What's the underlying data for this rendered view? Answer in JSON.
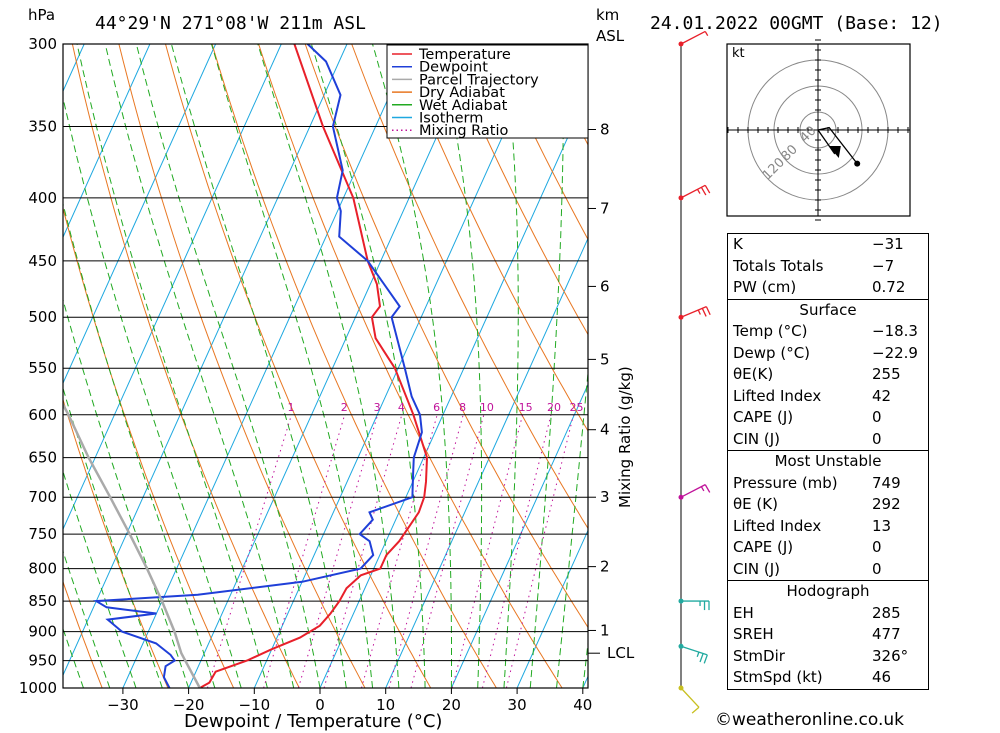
{
  "header": {
    "location": "44°29'N  271°08'W  211m  ASL",
    "datetime": "24.01.2022  00GMT  (Base: 12)",
    "left_unit": "hPa",
    "km_unit": "km",
    "asl_unit": "ASL",
    "kt_label": "kt"
  },
  "legend": [
    {
      "label": "Temperature",
      "color": "#e8202a",
      "style": "solid"
    },
    {
      "label": "Dewpoint",
      "color": "#1f3fd8",
      "style": "solid"
    },
    {
      "label": "Parcel Trajectory",
      "color": "#aaaaaa",
      "style": "solid"
    },
    {
      "label": "Dry Adiabat",
      "color": "#e87722",
      "style": "solid"
    },
    {
      "label": "Wet Adiabat",
      "color": "#22aa22",
      "style": "solid"
    },
    {
      "label": "Isotherm",
      "color": "#1ea8e0",
      "style": "solid"
    },
    {
      "label": "Mixing Ratio",
      "color": "#c0139a",
      "style": "dotted"
    }
  ],
  "chart_data": {
    "type": "line",
    "xlabel": "Dewpoint / Temperature (°C)",
    "ylabel": "hPa",
    "mixing_label": "Mixing Ratio (g/kg)",
    "xlim": [
      -40,
      40
    ],
    "x_ticks": [
      -30,
      -20,
      -10,
      0,
      10,
      20,
      30,
      40
    ],
    "pressure_levels": [
      300,
      350,
      400,
      450,
      500,
      550,
      600,
      650,
      700,
      750,
      800,
      850,
      900,
      950,
      1000
    ],
    "km_ticks": [
      {
        "label": "8",
        "p": 352
      },
      {
        "label": "7",
        "p": 408
      },
      {
        "label": "6",
        "p": 472
      },
      {
        "label": "5",
        "p": 541
      },
      {
        "label": "4",
        "p": 617
      },
      {
        "label": "3",
        "p": 700
      },
      {
        "label": "2",
        "p": 797
      },
      {
        "label": "1",
        "p": 898
      }
    ],
    "lcl": {
      "label": "LCL",
      "p": 937
    },
    "mixing_ratio_labels": [
      "1",
      "2",
      "3",
      "4",
      "6",
      "8",
      "10",
      "15",
      "20",
      "25"
    ],
    "series": [
      {
        "name": "Temperature",
        "color": "#e8202a",
        "points": [
          [
            1000,
            -18.3
          ],
          [
            990,
            -17.2
          ],
          [
            970,
            -17.0
          ],
          [
            950,
            -13.0
          ],
          [
            930,
            -10.0
          ],
          [
            910,
            -6.5
          ],
          [
            890,
            -4.3
          ],
          [
            870,
            -3.5
          ],
          [
            850,
            -3.0
          ],
          [
            830,
            -2.8
          ],
          [
            810,
            -1.5
          ],
          [
            800,
            1.0
          ],
          [
            780,
            1.0
          ],
          [
            760,
            2.0
          ],
          [
            740,
            2.5
          ],
          [
            720,
            3.0
          ],
          [
            700,
            2.8
          ],
          [
            680,
            2.0
          ],
          [
            650,
            0.5
          ],
          [
            600,
            -4.5
          ],
          [
            550,
            -10.5
          ],
          [
            520,
            -15.5
          ],
          [
            500,
            -17.5
          ],
          [
            490,
            -17.0
          ],
          [
            470,
            -19.0
          ],
          [
            450,
            -22.0
          ],
          [
            400,
            -28.5
          ],
          [
            350,
            -38.0
          ],
          [
            300,
            -48.0
          ]
        ]
      },
      {
        "name": "Dewpoint",
        "color": "#1f3fd8",
        "points": [
          [
            1000,
            -22.9
          ],
          [
            980,
            -24.5
          ],
          [
            960,
            -25.0
          ],
          [
            950,
            -24.0
          ],
          [
            940,
            -25.0
          ],
          [
            920,
            -28.0
          ],
          [
            900,
            -34.0
          ],
          [
            880,
            -37.0
          ],
          [
            870,
            -30.0
          ],
          [
            860,
            -38.0
          ],
          [
            850,
            -40.0
          ],
          [
            840,
            -25.0
          ],
          [
            820,
            -10.0
          ],
          [
            800,
            -2.0
          ],
          [
            780,
            -1.0
          ],
          [
            760,
            -2.5
          ],
          [
            750,
            -4.5
          ],
          [
            730,
            -3.5
          ],
          [
            720,
            -4.5
          ],
          [
            700,
            1.0
          ],
          [
            690,
            0.5
          ],
          [
            670,
            -0.5
          ],
          [
            650,
            -1.5
          ],
          [
            620,
            -2.0
          ],
          [
            600,
            -3.5
          ],
          [
            580,
            -6.0
          ],
          [
            550,
            -9.0
          ],
          [
            500,
            -14.5
          ],
          [
            490,
            -14.0
          ],
          [
            450,
            -22.0
          ],
          [
            430,
            -28.0
          ],
          [
            410,
            -29.5
          ],
          [
            400,
            -31.0
          ],
          [
            380,
            -32.0
          ],
          [
            350,
            -36.5
          ],
          [
            330,
            -37.5
          ],
          [
            310,
            -42.0
          ],
          [
            300,
            -46.0
          ]
        ]
      },
      {
        "name": "Parcel Trajectory",
        "color": "#aaaaaa",
        "points": [
          [
            1000,
            -18.3
          ],
          [
            937,
            -23.5
          ],
          [
            900,
            -26.0
          ],
          [
            850,
            -30.0
          ],
          [
            800,
            -34.5
          ],
          [
            750,
            -39.5
          ],
          [
            700,
            -45.0
          ],
          [
            650,
            -51.0
          ],
          [
            600,
            -57.0
          ],
          [
            550,
            -64.0
          ]
        ]
      }
    ]
  },
  "wind_barbs": [
    {
      "p": 300,
      "dir": 300,
      "kt": 5,
      "color": "#e8202a"
    },
    {
      "p": 400,
      "dir": 300,
      "kt": 25,
      "color": "#e8202a"
    },
    {
      "p": 500,
      "dir": 295,
      "kt": 25,
      "color": "#e8202a"
    },
    {
      "p": 700,
      "dir": 300,
      "kt": 15,
      "color": "#c0139a"
    },
    {
      "p": 850,
      "dir": 270,
      "kt": 25,
      "color": "#22aaa0"
    },
    {
      "p": 925,
      "dir": 250,
      "kt": 25,
      "color": "#22aaa0"
    },
    {
      "p": 1000,
      "dir": 220,
      "kt": 10,
      "color": "#c8c020"
    }
  ],
  "hodograph": {
    "rings": [
      "40",
      "80",
      "120"
    ],
    "trace_kt": [
      [
        0,
        0
      ],
      [
        8,
        2
      ],
      [
        28,
        -28
      ]
    ],
    "storm_motion_kt": [
      12,
      -20
    ],
    "colors": {
      "trace": "#000000"
    }
  },
  "indices": [
    {
      "label": "K",
      "value": "-31"
    },
    {
      "label": "Totals Totals",
      "value": "-7"
    },
    {
      "label": "PW (cm)",
      "value": "0.72"
    }
  ],
  "surface": {
    "title": "Surface",
    "rows": [
      {
        "label": "Temp (°C)",
        "value": "-18.3"
      },
      {
        "label": "Dewp (°C)",
        "value": "-22.9"
      },
      {
        "label": "θE(K)",
        "value": "255"
      },
      {
        "label": "Lifted Index",
        "value": "42"
      },
      {
        "label": "CAPE (J)",
        "value": "0"
      },
      {
        "label": "CIN (J)",
        "value": "0"
      }
    ]
  },
  "most_unstable": {
    "title": "Most Unstable",
    "rows": [
      {
        "label": "Pressure (mb)",
        "value": "749"
      },
      {
        "label": "θE (K)",
        "value": "292"
      },
      {
        "label": "Lifted Index",
        "value": "13"
      },
      {
        "label": "CAPE (J)",
        "value": "0"
      },
      {
        "label": "CIN (J)",
        "value": "0"
      }
    ]
  },
  "hodograph_stats": {
    "title": "Hodograph",
    "rows": [
      {
        "label": "EH",
        "value": "285"
      },
      {
        "label": "SREH",
        "value": "477"
      },
      {
        "label": "StmDir",
        "value": "326°"
      },
      {
        "label": "StmSpd (kt)",
        "value": "46"
      }
    ]
  },
  "credit": "©weatheronline.co.uk"
}
